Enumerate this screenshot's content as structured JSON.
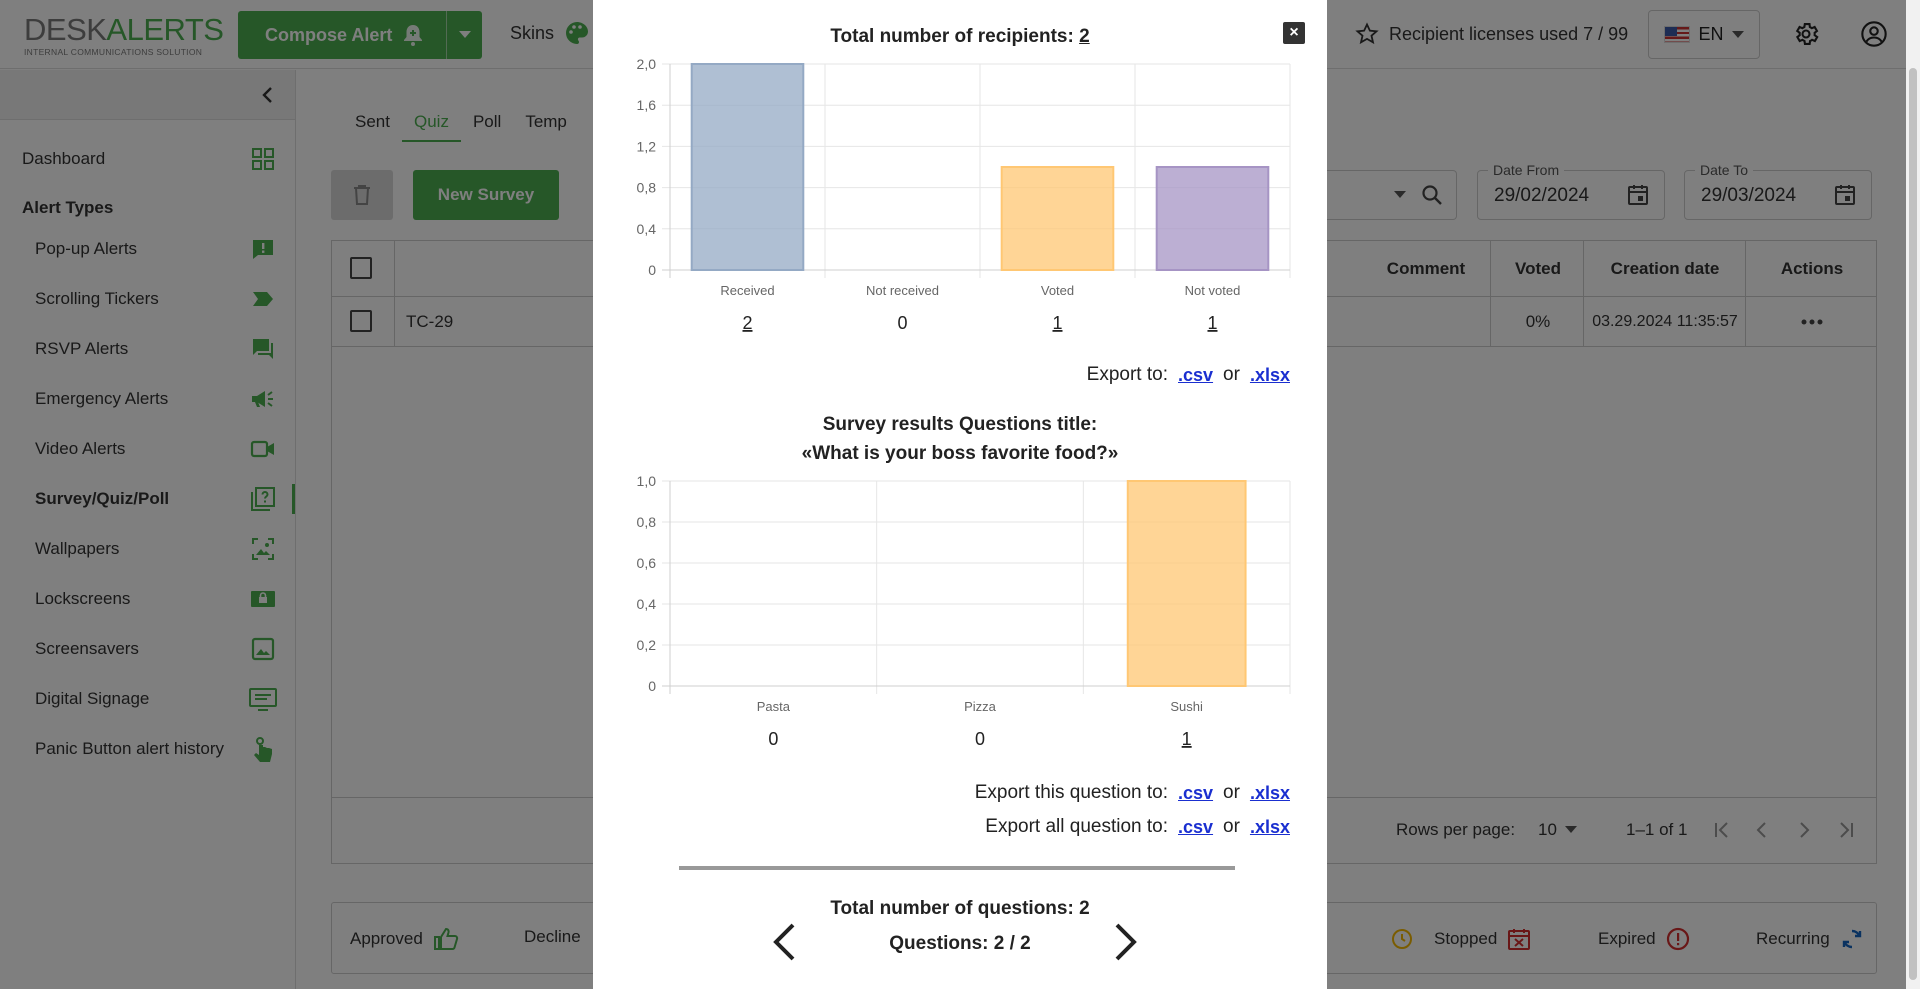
{
  "header": {
    "logo_main_a": "DESK",
    "logo_main_b": "ALERTS",
    "logo_sub": "INTERNAL COMMUNICATIONS SOLUTION",
    "compose_label": "Compose Alert",
    "skins_label": "Skins",
    "licenses_label": "Recipient licenses used 7 / 99",
    "language": "EN"
  },
  "sidebar": {
    "dashboard": "Dashboard",
    "section_title": "Alert Types",
    "items": [
      {
        "label": "Pop-up Alerts",
        "icon": "popup-alert-icon"
      },
      {
        "label": "Scrolling Tickers",
        "icon": "ticker-icon"
      },
      {
        "label": "RSVP Alerts",
        "icon": "rsvp-chat-icon"
      },
      {
        "label": "Emergency Alerts",
        "icon": "megaphone-icon"
      },
      {
        "label": "Video Alerts",
        "icon": "video-icon"
      },
      {
        "label": "Survey/Quiz/Poll",
        "icon": "survey-icon"
      },
      {
        "label": "Wallpapers",
        "icon": "wallpaper-icon"
      },
      {
        "label": "Lockscreens",
        "icon": "lockscreen-icon"
      },
      {
        "label": "Screensavers",
        "icon": "screensaver-icon"
      },
      {
        "label": "Digital Signage",
        "icon": "signage-icon"
      },
      {
        "label": "Panic Button alert history",
        "icon": "panic-touch-icon"
      }
    ]
  },
  "main": {
    "tabs": [
      "Sent",
      "Quiz",
      "Poll",
      "Temp"
    ],
    "new_survey": "New Survey",
    "date_from_label": "Date From",
    "date_from_value": "29/02/2024",
    "date_to_label": "Date To",
    "date_to_value": "29/03/2024",
    "columns": {
      "comment": "Comment",
      "voted": "Voted",
      "created": "Creation date",
      "actions": "Actions"
    },
    "row": {
      "name": "TC-29",
      "voted": "0%",
      "created": "03.29.2024 11:35:57"
    },
    "rows_per_page_label": "Rows per page:",
    "rows_per_page_value": "10",
    "range": "1–1 of 1",
    "legend": {
      "approved": "Approved",
      "decline": "Decline",
      "stopped": "Stopped",
      "expired": "Expired",
      "recurring": "Recurring"
    }
  },
  "modal": {
    "recipients_label": "Total number of recipients:",
    "recipients_value": "2",
    "export_to_label": "Export to:",
    "or": "or",
    "csv": ".csv",
    "xlsx": ".xlsx",
    "survey_title_line1": "Survey results Questions title:",
    "survey_title_line2": "«What is your boss favorite food?»",
    "export_question_label": "Export this question to:",
    "export_all_label": "Export all question to:",
    "total_questions_label": "Total number of questions: 2",
    "questions_nav": "Questions: 2 / 2"
  },
  "chart_data": [
    {
      "type": "bar",
      "categories": [
        "Received",
        "Not received",
        "Voted",
        "Not voted"
      ],
      "values": [
        2,
        0,
        1,
        1
      ],
      "colors": [
        "#94a9c4",
        "#e0e0e0",
        "#ffc773",
        "#a694c4"
      ],
      "ylim": [
        0,
        2
      ],
      "yticks": [
        "0",
        "0,4",
        "0,8",
        "1,2",
        "1,6",
        "2,0"
      ],
      "value_labels": [
        "2",
        "0",
        "1",
        "1"
      ],
      "grid": true
    },
    {
      "type": "bar",
      "categories": [
        "Pasta",
        "Pizza",
        "Sushi"
      ],
      "values": [
        0,
        0,
        1
      ],
      "colors": [
        "#ffc773",
        "#ffc773",
        "#ffc773"
      ],
      "ylim": [
        0,
        1
      ],
      "yticks": [
        "0",
        "0,2",
        "0,4",
        "0,6",
        "0,8",
        "1,0"
      ],
      "value_labels": [
        "0",
        "0",
        "1"
      ],
      "grid": true
    }
  ]
}
